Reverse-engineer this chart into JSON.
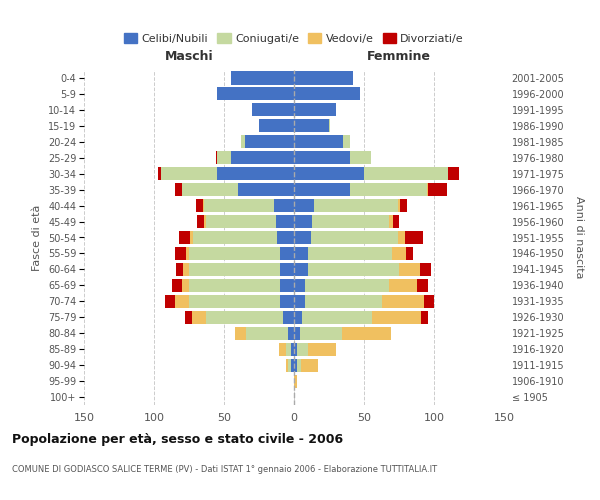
{
  "age_groups": [
    "100+",
    "95-99",
    "90-94",
    "85-89",
    "80-84",
    "75-79",
    "70-74",
    "65-69",
    "60-64",
    "55-59",
    "50-54",
    "45-49",
    "40-44",
    "35-39",
    "30-34",
    "25-29",
    "20-24",
    "15-19",
    "10-14",
    "5-9",
    "0-4"
  ],
  "birth_years": [
    "≤ 1905",
    "1906-1910",
    "1911-1915",
    "1916-1920",
    "1921-1925",
    "1926-1930",
    "1931-1935",
    "1936-1940",
    "1941-1945",
    "1946-1950",
    "1951-1955",
    "1956-1960",
    "1961-1965",
    "1966-1970",
    "1971-1975",
    "1976-1980",
    "1981-1985",
    "1986-1990",
    "1991-1995",
    "1996-2000",
    "2001-2005"
  ],
  "maschi": {
    "celibi": [
      0,
      0,
      2,
      2,
      4,
      8,
      10,
      10,
      10,
      10,
      12,
      13,
      14,
      40,
      55,
      45,
      35,
      25,
      30,
      55,
      45
    ],
    "coniugati": [
      0,
      0,
      2,
      4,
      30,
      55,
      65,
      65,
      65,
      65,
      60,
      50,
      50,
      40,
      40,
      10,
      3,
      0,
      0,
      0,
      0
    ],
    "vedovi": [
      0,
      0,
      2,
      5,
      8,
      10,
      10,
      5,
      4,
      2,
      2,
      1,
      1,
      0,
      0,
      0,
      0,
      0,
      0,
      0,
      0
    ],
    "divorziati": [
      0,
      0,
      0,
      0,
      0,
      5,
      7,
      7,
      5,
      8,
      8,
      5,
      5,
      5,
      2,
      1,
      0,
      0,
      0,
      0,
      0
    ]
  },
  "femmine": {
    "nubili": [
      0,
      0,
      2,
      2,
      4,
      6,
      8,
      8,
      10,
      10,
      12,
      13,
      14,
      40,
      50,
      40,
      35,
      25,
      30,
      47,
      42
    ],
    "coniugate": [
      0,
      0,
      3,
      8,
      30,
      50,
      55,
      60,
      65,
      60,
      62,
      55,
      60,
      55,
      60,
      15,
      5,
      1,
      0,
      0,
      0
    ],
    "vedove": [
      0,
      2,
      12,
      20,
      35,
      35,
      30,
      20,
      15,
      10,
      5,
      3,
      2,
      1,
      0,
      0,
      0,
      0,
      0,
      0,
      0
    ],
    "divorziate": [
      0,
      0,
      0,
      0,
      0,
      5,
      7,
      8,
      8,
      5,
      13,
      4,
      5,
      13,
      8,
      0,
      0,
      0,
      0,
      0,
      0
    ]
  },
  "colors": {
    "celibi": "#4472c4",
    "coniugati": "#c5d9a0",
    "vedovi": "#f0c060",
    "divorziati": "#c00000"
  },
  "xlim": 150,
  "title": "Popolazione per età, sesso e stato civile - 2006",
  "subtitle": "COMUNE DI GODIASCO SALICE TERME (PV) - Dati ISTAT 1° gennaio 2006 - Elaborazione TUTTITALIA.IT",
  "ylabel_left": "Fasce di età",
  "ylabel_right": "Anni di nascita",
  "legend_labels": [
    "Celibi/Nubili",
    "Coniugati/e",
    "Vedovi/e",
    "Divorziati/e"
  ],
  "bg_color": "#ffffff",
  "grid_color": "#cccccc"
}
